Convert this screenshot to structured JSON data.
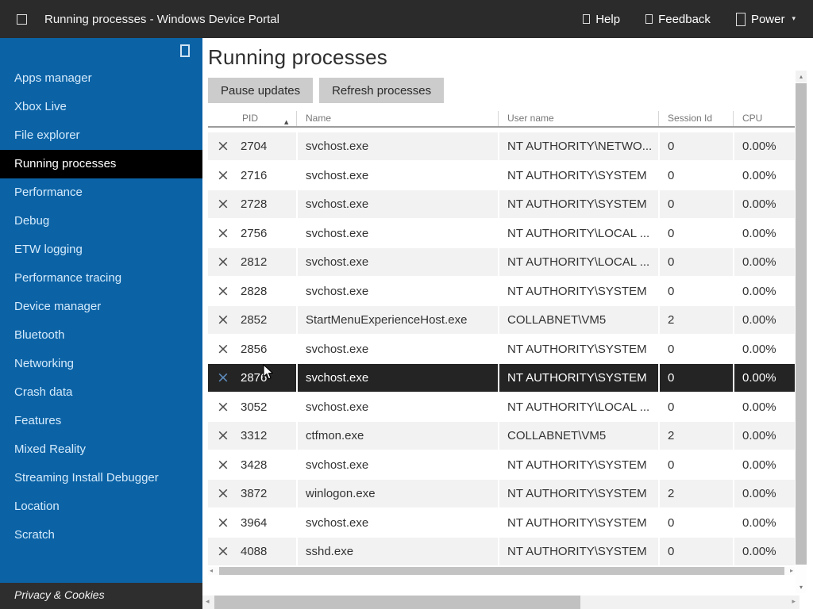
{
  "topbar": {
    "title": "Running processes - Windows Device Portal",
    "actions": [
      {
        "label": "Help"
      },
      {
        "label": "Feedback"
      },
      {
        "label": "Power"
      }
    ]
  },
  "sidebar": {
    "items": [
      "Apps manager",
      "Xbox Live",
      "File explorer",
      "Running processes",
      "Performance",
      "Debug",
      "ETW logging",
      "Performance tracing",
      "Device manager",
      "Bluetooth",
      "Networking",
      "Crash data",
      "Features",
      "Mixed Reality",
      "Streaming Install Debugger",
      "Location",
      "Scratch"
    ],
    "selected": "Running processes",
    "footer_link": "Privacy & Cookies"
  },
  "main": {
    "title": "Running processes",
    "toolbar": {
      "pause_label": "Pause updates",
      "refresh_label": "Refresh processes"
    },
    "table": {
      "columns": [
        "PID",
        "Name",
        "User name",
        "Session Id",
        "CPU"
      ],
      "sort": {
        "column": "PID",
        "direction": "ascending"
      },
      "selected_pid": "2876",
      "rows": [
        {
          "pid": "2704",
          "name": "svchost.exe",
          "user": "NT AUTHORITY\\NETWO...",
          "session": "0",
          "cpu": "0.00%"
        },
        {
          "pid": "2716",
          "name": "svchost.exe",
          "user": "NT AUTHORITY\\SYSTEM",
          "session": "0",
          "cpu": "0.00%"
        },
        {
          "pid": "2728",
          "name": "svchost.exe",
          "user": "NT AUTHORITY\\SYSTEM",
          "session": "0",
          "cpu": "0.00%"
        },
        {
          "pid": "2756",
          "name": "svchost.exe",
          "user": "NT AUTHORITY\\LOCAL ...",
          "session": "0",
          "cpu": "0.00%"
        },
        {
          "pid": "2812",
          "name": "svchost.exe",
          "user": "NT AUTHORITY\\LOCAL ...",
          "session": "0",
          "cpu": "0.00%"
        },
        {
          "pid": "2828",
          "name": "svchost.exe",
          "user": "NT AUTHORITY\\SYSTEM",
          "session": "0",
          "cpu": "0.00%"
        },
        {
          "pid": "2852",
          "name": "StartMenuExperienceHost.exe",
          "user": "COLLABNET\\VM5",
          "session": "2",
          "cpu": "0.00%"
        },
        {
          "pid": "2856",
          "name": "svchost.exe",
          "user": "NT AUTHORITY\\SYSTEM",
          "session": "0",
          "cpu": "0.00%"
        },
        {
          "pid": "2876",
          "name": "svchost.exe",
          "user": "NT AUTHORITY\\SYSTEM",
          "session": "0",
          "cpu": "0.00%"
        },
        {
          "pid": "3052",
          "name": "svchost.exe",
          "user": "NT AUTHORITY\\LOCAL ...",
          "session": "0",
          "cpu": "0.00%"
        },
        {
          "pid": "3312",
          "name": "ctfmon.exe",
          "user": "COLLABNET\\VM5",
          "session": "2",
          "cpu": "0.00%"
        },
        {
          "pid": "3428",
          "name": "svchost.exe",
          "user": "NT AUTHORITY\\SYSTEM",
          "session": "0",
          "cpu": "0.00%"
        },
        {
          "pid": "3872",
          "name": "winlogon.exe",
          "user": "NT AUTHORITY\\SYSTEM",
          "session": "2",
          "cpu": "0.00%"
        },
        {
          "pid": "3964",
          "name": "svchost.exe",
          "user": "NT AUTHORITY\\SYSTEM",
          "session": "0",
          "cpu": "0.00%"
        },
        {
          "pid": "4088",
          "name": "sshd.exe",
          "user": "NT AUTHORITY\\SYSTEM",
          "session": "0",
          "cpu": "0.00%"
        }
      ]
    }
  },
  "colors": {
    "topbar-bg": "#2b2b2b",
    "sidebar-bg": "#0b63a6",
    "nav-text": "#d5eafb",
    "nav-selected-bg": "#000000",
    "privacy-bg": "#2e2e2e",
    "button-bg": "#cccccc",
    "row-alt": "#f2f2f2",
    "row-selected": "#242424",
    "scroll-track": "#f1f1f1",
    "scroll-thumb": "#c1c1c1"
  }
}
